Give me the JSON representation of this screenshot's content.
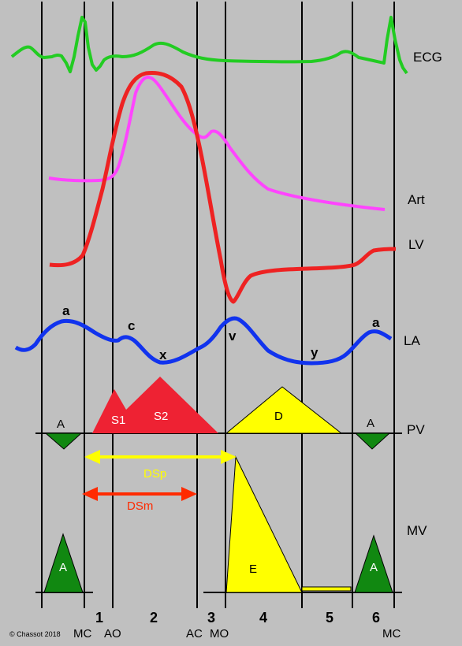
{
  "colors": {
    "background": "#c0c0c0",
    "ecg": "#22cc22",
    "art": "#ff44ff",
    "lv": "#ee2222",
    "la": "#1133ee",
    "pv_systolic": "#ee2233",
    "pv_diastolic": "#ffff00",
    "atrial_reversal": "#118811",
    "dsp_arrow": "#ffff00",
    "dsm_arrow": "#ff2a00"
  },
  "traces": {
    "ecg": "ECG",
    "art": "Art",
    "lv": "LV",
    "la": "LA",
    "pv": "PV",
    "mv": "MV"
  },
  "la_waves": {
    "a1": "a",
    "c": "c",
    "x": "x",
    "v": "v",
    "y": "y",
    "a2": "a"
  },
  "pv_waves": {
    "a_left": "A",
    "s1": "S1",
    "s2": "S2",
    "d": "D",
    "a_right": "A"
  },
  "mv_waves": {
    "a_left": "A",
    "e": "E",
    "a_right": "A"
  },
  "intervals": {
    "dsp": "DSp",
    "dsm": "DSm"
  },
  "phases": [
    "1",
    "2",
    "3",
    "4",
    "5",
    "6"
  ],
  "events": {
    "mc_left": "MC",
    "ao": "AO",
    "ac": "AC",
    "mo": "MO",
    "mc_right": "MC"
  },
  "copyright": "© Chassot 2018"
}
